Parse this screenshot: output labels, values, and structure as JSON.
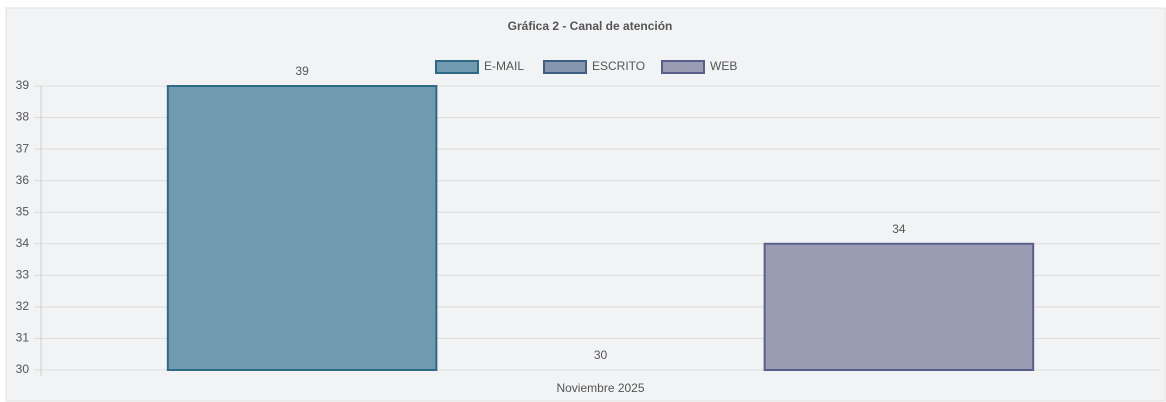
{
  "chart_data": {
    "type": "bar",
    "title": "Gráfica 2 - Canal de atención",
    "categories": [
      "Noviembre 2025"
    ],
    "series": [
      {
        "name": "E-MAIL",
        "color": "#6f9ab0",
        "border_color": "#2e6a85",
        "values": [
          39
        ]
      },
      {
        "name": "ESCRITO",
        "color": "#8596ae",
        "border_color": "#3d5f85",
        "values": [
          30
        ]
      },
      {
        "name": "WEB",
        "color": "#999cb3",
        "border_color": "#5a5f8a",
        "values": [
          34
        ]
      }
    ],
    "ylim": [
      30,
      39
    ],
    "yticks": [
      30,
      31,
      32,
      33,
      34,
      35,
      36,
      37,
      38,
      39
    ],
    "grid": true,
    "legend": "top"
  }
}
